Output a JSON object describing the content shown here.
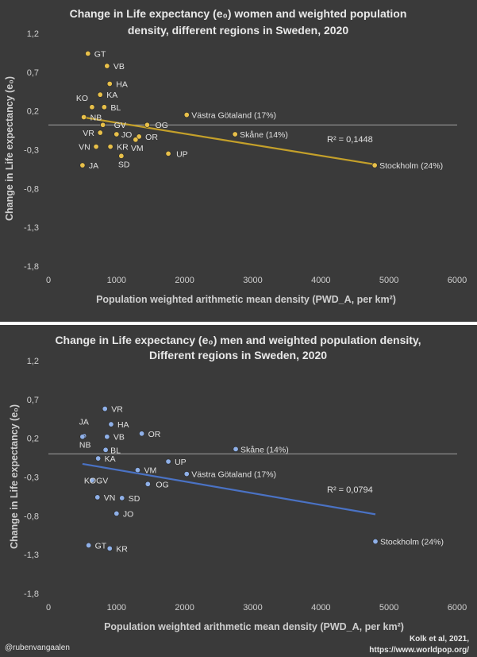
{
  "chart_data": [
    {
      "type": "scatter",
      "title_lines": [
        "Change in Life expectancy (e₀) women and weighted population",
        "density, different regions in Sweden, 2020"
      ],
      "xlabel": "Population weighted arithmetic mean density (PWD_A, per km²)",
      "ylabel": "Change in Life expectancy (e₀)",
      "xlim": [
        0,
        6000
      ],
      "ylim": [
        -1.8,
        1.2
      ],
      "xticks": [
        0,
        1000,
        2000,
        3000,
        4000,
        5000,
        6000
      ],
      "yticks": [
        1.2,
        0.7,
        0.2,
        -0.3,
        -0.8,
        -1.3,
        -1.8
      ],
      "ytick_labels": [
        "1,2",
        "0,7",
        "0,2",
        "-0,3",
        "-0,8",
        "-1,3",
        "-1,8"
      ],
      "reference_line_y": 0.02,
      "point_color": "#e8c04a",
      "trend_color": "#c4a02a",
      "r2_label": "R² = 0,1448",
      "trendline": {
        "x": [
          500,
          4800
        ],
        "y": [
          0.12,
          -0.49
        ]
      },
      "points": [
        {
          "label": "GT",
          "x": 580,
          "y": 0.94
        },
        {
          "label": "VB",
          "x": 860,
          "y": 0.78
        },
        {
          "label": "HA",
          "x": 900,
          "y": 0.55
        },
        {
          "label": "KA",
          "x": 760,
          "y": 0.41
        },
        {
          "label": "KO",
          "x": 640,
          "y": 0.25
        },
        {
          "label": "BL",
          "x": 820,
          "y": 0.25
        },
        {
          "label": "NB",
          "x": 520,
          "y": 0.12
        },
        {
          "label": "Västra Götaland (17%)",
          "x": 2030,
          "y": 0.15
        },
        {
          "label": "GV",
          "x": 800,
          "y": 0.02
        },
        {
          "label": "OG",
          "x": 1450,
          "y": 0.02
        },
        {
          "label": "VR",
          "x": 760,
          "y": -0.08
        },
        {
          "label": "JO",
          "x": 1000,
          "y": -0.1
        },
        {
          "label": "OR",
          "x": 1330,
          "y": -0.13
        },
        {
          "label": "Skåne (14%)",
          "x": 2740,
          "y": -0.1
        },
        {
          "label": "VN",
          "x": 700,
          "y": -0.26
        },
        {
          "label": "KR",
          "x": 910,
          "y": -0.26
        },
        {
          "label": "VM",
          "x": 1280,
          "y": -0.17
        },
        {
          "label": "UP",
          "x": 1760,
          "y": -0.35
        },
        {
          "label": "SD",
          "x": 1070,
          "y": -0.38
        },
        {
          "label": "JA",
          "x": 500,
          "y": -0.5
        },
        {
          "label": "Stockholm (24%)",
          "x": 4790,
          "y": -0.5
        }
      ]
    },
    {
      "type": "scatter",
      "title_lines": [
        "Change in Life expectancy (e₀) men and weighted population density,",
        "Different regions in Sweden, 2020"
      ],
      "xlabel": "Population weighted arithmetic mean density (PWD_A, per km²)",
      "ylabel": "Change in Life expectancy (e₀)",
      "xlim": [
        0,
        6000
      ],
      "ylim": [
        -1.8,
        1.2
      ],
      "xticks": [
        0,
        1000,
        2000,
        3000,
        4000,
        5000,
        6000
      ],
      "yticks": [
        1.2,
        0.7,
        0.2,
        -0.3,
        -0.8,
        -1.3,
        -1.8
      ],
      "ytick_labels": [
        "1,2",
        "0,7",
        "0,2",
        "-0,3",
        "-0,8",
        "-1,3",
        "-1,8"
      ],
      "reference_line_y": 0.0,
      "point_color": "#8fb0e8",
      "trend_color": "#4a72c4",
      "r2_label": "R² = 0,0794",
      "trendline": {
        "x": [
          500,
          4800
        ],
        "y": [
          -0.13,
          -0.78
        ]
      },
      "points": [
        {
          "label": "VR",
          "x": 830,
          "y": 0.58
        },
        {
          "label": "HA",
          "x": 920,
          "y": 0.38
        },
        {
          "label": "JA",
          "x": 520,
          "y": 0.23
        },
        {
          "label": "VB",
          "x": 860,
          "y": 0.22
        },
        {
          "label": "OR",
          "x": 1370,
          "y": 0.26
        },
        {
          "label": "NB",
          "x": 500,
          "y": 0.22
        },
        {
          "label": "BL",
          "x": 840,
          "y": 0.05
        },
        {
          "label": "Skåne (14%)",
          "x": 2750,
          "y": 0.06
        },
        {
          "label": "KA",
          "x": 730,
          "y": -0.06
        },
        {
          "label": "UP",
          "x": 1760,
          "y": -0.1
        },
        {
          "label": "VM",
          "x": 1310,
          "y": -0.21
        },
        {
          "label": "Västra Götaland (17%)",
          "x": 2030,
          "y": -0.26
        },
        {
          "label": "KOGV",
          "x": 640,
          "y": -0.34
        },
        {
          "label": "OG",
          "x": 1460,
          "y": -0.39
        },
        {
          "label": "VN",
          "x": 720,
          "y": -0.56
        },
        {
          "label": "SD",
          "x": 1080,
          "y": -0.57
        },
        {
          "label": "JO",
          "x": 1000,
          "y": -0.77
        },
        {
          "label": "GT",
          "x": 590,
          "y": -1.18
        },
        {
          "label": "KR",
          "x": 900,
          "y": -1.22
        },
        {
          "label": "Stockholm (24%)",
          "x": 4800,
          "y": -1.13
        }
      ]
    }
  ],
  "footer": {
    "handle": "@rubenvangaalen",
    "source_line1": "Kolk et al, 2021,",
    "source_line2": "https://www.worldpop.org/"
  },
  "colors": {
    "background": "#3a3a3a",
    "divider": "#ffffff",
    "zero_line": "#a0a0a0"
  }
}
